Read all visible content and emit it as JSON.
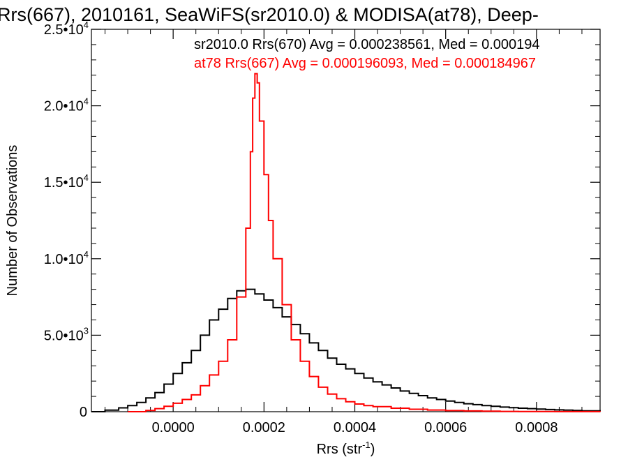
{
  "chart_data": {
    "type": "line",
    "title": "Rrs(667), 2010161, SeaWiFS(sr2010.0) & MODISA(at78), Deep-",
    "xlabel": "Rrs (str",
    "xlabel_sup": "-1",
    "xlabel_suffix": ")",
    "ylabel": "Number of Observations",
    "xlim": [
      -0.00018,
      0.00094
    ],
    "ylim": [
      0,
      25000
    ],
    "x_ticks": [
      {
        "value": 0.0,
        "label": "0.0000"
      },
      {
        "value": 0.0002,
        "label": "0.0002"
      },
      {
        "value": 0.0004,
        "label": "0.0004"
      },
      {
        "value": 0.0006,
        "label": "0.0006"
      },
      {
        "value": 0.0008,
        "label": "0.0008"
      }
    ],
    "y_ticks": [
      {
        "value": 0,
        "mant": "0",
        "exp": ""
      },
      {
        "value": 5000,
        "mant": "5.0•10",
        "exp": "3"
      },
      {
        "value": 10000,
        "mant": "1.0•10",
        "exp": "4"
      },
      {
        "value": 15000,
        "mant": "1.5•10",
        "exp": "4"
      },
      {
        "value": 20000,
        "mant": "2.0•10",
        "exp": "4"
      },
      {
        "value": 25000,
        "mant": "2.5•10",
        "exp": "4"
      }
    ],
    "annotations": [
      {
        "text": "sr2010.0 Rrs(670) Avg = 0.000238561, Med = 0.000194",
        "color": "#000000"
      },
      {
        "text": "at78 Rrs(667) Avg = 0.000196093, Med = 0.000184967",
        "color": "#ff0000"
      }
    ],
    "series": [
      {
        "color": "#000000",
        "points": [
          [
            -0.00018,
            0
          ],
          [
            -0.00015,
            100
          ],
          [
            -0.00012,
            250
          ],
          [
            -0.0001,
            400
          ],
          [
            -8e-05,
            600
          ],
          [
            -6e-05,
            900
          ],
          [
            -4e-05,
            1250
          ],
          [
            -2e-05,
            1800
          ],
          [
            0.0,
            2500
          ],
          [
            2e-05,
            3200
          ],
          [
            4e-05,
            4000
          ],
          [
            6e-05,
            5000
          ],
          [
            8e-05,
            6000
          ],
          [
            0.0001,
            6700
          ],
          [
            0.00012,
            7400
          ],
          [
            0.00014,
            7900
          ],
          [
            0.00016,
            8000
          ],
          [
            0.00018,
            7700
          ],
          [
            0.0002,
            7300
          ],
          [
            0.00022,
            6800
          ],
          [
            0.00024,
            6200
          ],
          [
            0.00026,
            5700
          ],
          [
            0.00028,
            5100
          ],
          [
            0.0003,
            4500
          ],
          [
            0.00032,
            4000
          ],
          [
            0.00034,
            3500
          ],
          [
            0.00036,
            3100
          ],
          [
            0.00038,
            2800
          ],
          [
            0.0004,
            2500
          ],
          [
            0.00042,
            2200
          ],
          [
            0.00044,
            1950
          ],
          [
            0.00046,
            1750
          ],
          [
            0.00048,
            1550
          ],
          [
            0.0005,
            1350
          ],
          [
            0.00052,
            1200
          ],
          [
            0.00054,
            1050
          ],
          [
            0.00056,
            900
          ],
          [
            0.00058,
            800
          ],
          [
            0.0006,
            700
          ],
          [
            0.00062,
            600
          ],
          [
            0.00064,
            520
          ],
          [
            0.00066,
            460
          ],
          [
            0.00068,
            400
          ],
          [
            0.0007,
            350
          ],
          [
            0.00072,
            300
          ],
          [
            0.00074,
            260
          ],
          [
            0.00076,
            230
          ],
          [
            0.00078,
            200
          ],
          [
            0.0008,
            170
          ],
          [
            0.00082,
            140
          ],
          [
            0.00084,
            120
          ],
          [
            0.00086,
            100
          ],
          [
            0.00088,
            80
          ],
          [
            0.0009,
            60
          ],
          [
            0.00094,
            30
          ]
        ]
      },
      {
        "color": "#ff0000",
        "points": [
          [
            -0.0001,
            0
          ],
          [
            -6e-05,
            80
          ],
          [
            -4e-05,
            200
          ],
          [
            -2e-05,
            350
          ],
          [
            0.0,
            550
          ],
          [
            2e-05,
            800
          ],
          [
            4e-05,
            1100
          ],
          [
            6e-05,
            1700
          ],
          [
            8e-05,
            2400
          ],
          [
            0.0001,
            3300
          ],
          [
            0.00012,
            4700
          ],
          [
            0.00014,
            7500
          ],
          [
            0.00016,
            12000
          ],
          [
            0.00017,
            17000
          ],
          [
            0.000175,
            20500
          ],
          [
            0.00018,
            22100
          ],
          [
            0.000185,
            21500
          ],
          [
            0.00019,
            19000
          ],
          [
            0.0002,
            15500
          ],
          [
            0.00021,
            12500
          ],
          [
            0.00022,
            10000
          ],
          [
            0.00024,
            7000
          ],
          [
            0.00026,
            4700
          ],
          [
            0.00028,
            3300
          ],
          [
            0.0003,
            2300
          ],
          [
            0.00032,
            1600
          ],
          [
            0.00034,
            1150
          ],
          [
            0.00036,
            850
          ],
          [
            0.00038,
            650
          ],
          [
            0.0004,
            500
          ],
          [
            0.00042,
            400
          ],
          [
            0.00044,
            330
          ],
          [
            0.00048,
            230
          ],
          [
            0.00052,
            160
          ],
          [
            0.00056,
            110
          ],
          [
            0.0006,
            75
          ],
          [
            0.00064,
            50
          ],
          [
            0.00068,
            35
          ],
          [
            0.00072,
            20
          ],
          [
            0.00076,
            12
          ],
          [
            0.0008,
            8
          ],
          [
            0.00084,
            5
          ],
          [
            0.00088,
            3
          ],
          [
            0.00094,
            0
          ]
        ]
      }
    ]
  }
}
